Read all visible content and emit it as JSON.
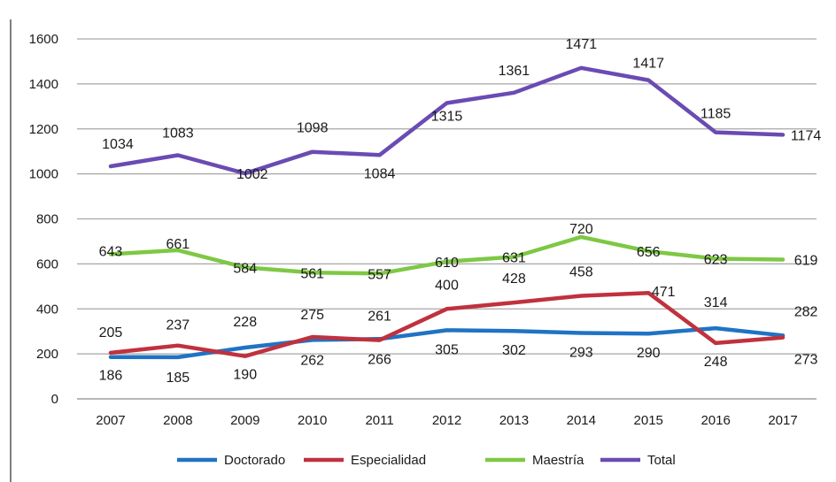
{
  "chart_data": {
    "type": "line",
    "title": "",
    "xlabel": "",
    "ylabel": "",
    "ylim": [
      0,
      1600
    ],
    "yticks": [
      0,
      200,
      400,
      600,
      800,
      1000,
      1200,
      1400,
      1600
    ],
    "grid": true,
    "legend": "bottom",
    "categories": [
      "2007",
      "2008",
      "2009",
      "2010",
      "2011",
      "2012",
      "2013",
      "2014",
      "2015",
      "2016",
      "2017"
    ],
    "series": [
      {
        "name": "Doctorado",
        "color": "#1f73c4",
        "values": [
          186,
          185,
          228,
          262,
          266,
          305,
          302,
          293,
          290,
          314,
          282
        ]
      },
      {
        "name": "Especialidad",
        "color": "#c0313e",
        "values": [
          205,
          237,
          190,
          275,
          261,
          400,
          428,
          458,
          471,
          248,
          273
        ]
      },
      {
        "name": "Maestría",
        "color": "#7ec844",
        "values": [
          643,
          661,
          584,
          561,
          557,
          610,
          631,
          720,
          656,
          623,
          619
        ]
      },
      {
        "name": "Total",
        "color": "#6a4bb3",
        "values": [
          1034,
          1083,
          1002,
          1098,
          1084,
          1315,
          1361,
          1471,
          1417,
          1185,
          1174
        ]
      }
    ]
  }
}
